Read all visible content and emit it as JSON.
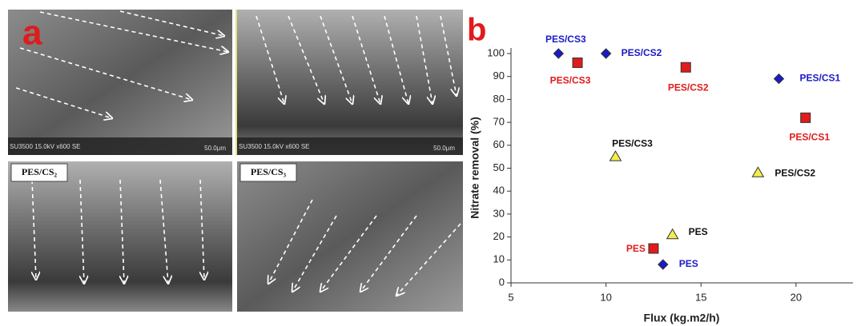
{
  "sem_panels": {
    "letter": "a",
    "info": "SU3500 15.0kV x600 SE",
    "scale": "50.0μm",
    "labels": [
      "PES/CS₂",
      "PES/CS₃"
    ]
  },
  "chart_data": {
    "type": "scatter",
    "letter": "b",
    "x_label": "Flux (kg.m2/h)",
    "y_label": "Nitrate removal (%)",
    "xlim": [
      5,
      23
    ],
    "xticks": [
      5,
      10,
      15,
      20
    ],
    "ylim": [
      0,
      100
    ],
    "yticks": [
      0,
      10,
      20,
      30,
      40,
      50,
      60,
      70,
      80,
      90,
      100
    ],
    "series": [
      {
        "marker": "diamond",
        "color": "#1a1ac8",
        "label_color": "#1a1ac8",
        "x": [
          7.5,
          10,
          19.1,
          13
        ],
        "values": [
          100,
          100,
          89,
          8
        ],
        "point_labels": [
          "PES/CS3",
          "PES/CS2",
          "PES/CS1",
          "PES"
        ]
      },
      {
        "marker": "square",
        "color": "#e01b1b",
        "label_color": "#e01b1b",
        "x": [
          8.5,
          14.2,
          20.5,
          12.5
        ],
        "values": [
          96,
          94,
          72,
          15
        ],
        "point_labels": [
          "PES/CS3",
          "PES/CS2",
          "PES/CS1",
          "PES"
        ]
      },
      {
        "marker": "triangle",
        "color": "#f4ee4a",
        "label_color": "#111111",
        "x": [
          10.5,
          18,
          13.5
        ],
        "values": [
          55,
          48,
          21
        ],
        "point_labels": [
          "PES/CS3",
          "PES/CS2",
          "PES"
        ]
      }
    ]
  }
}
